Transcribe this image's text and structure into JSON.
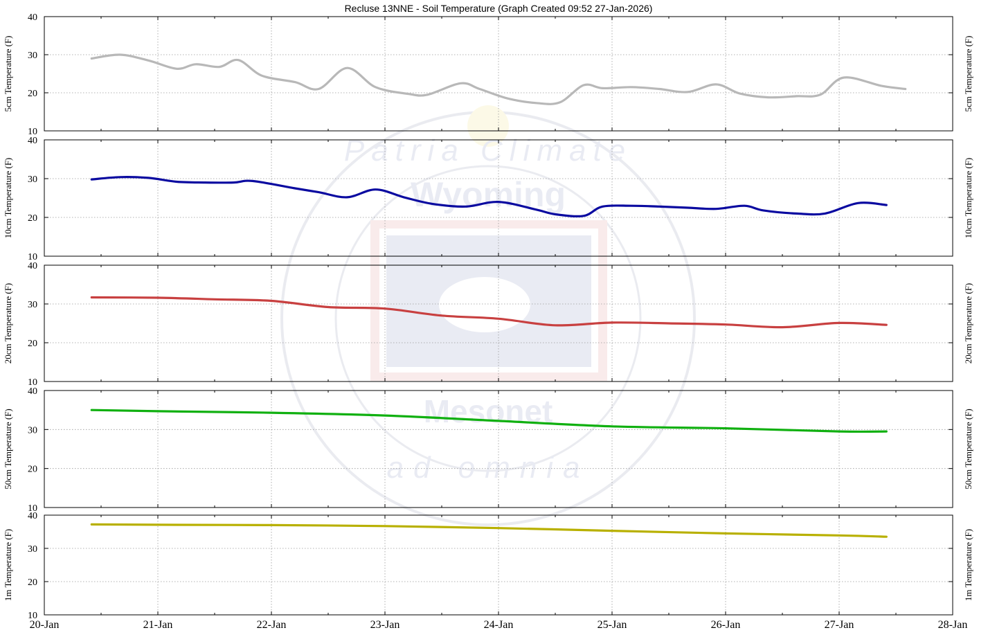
{
  "title": "Recluse 13NNE - Soil Temperature (Graph Created 09:52 27-Jan-2026)",
  "x_tick_labels": [
    "20-Jan",
    "21-Jan",
    "22-Jan",
    "23-Jan",
    "24-Jan",
    "25-Jan",
    "26-Jan",
    "27-Jan",
    "28-Jan"
  ],
  "watermark": {
    "ring_text_top": "Patria Climate",
    "name": "Wyoming",
    "name2": "Mesonet",
    "ring_text_bottom": "ad omnia"
  },
  "chart_data": [
    {
      "type": "line",
      "ylabel": "5cm Temperature (F)",
      "ylim": [
        10,
        40
      ],
      "yticks": [
        10,
        20,
        30,
        40
      ],
      "xlim": [
        "2026-01-20T00:00",
        "2026-01-28T00:00"
      ],
      "grid": true,
      "color": "#b8b8b8",
      "x": [
        "2026-01-20T10:00",
        "2026-01-20T16:00",
        "2026-01-20T22:00",
        "2026-01-21T04:00",
        "2026-01-21T08:00",
        "2026-01-21T13:00",
        "2026-01-21T17:00",
        "2026-01-21T22:00",
        "2026-01-22T05:00",
        "2026-01-22T10:00",
        "2026-01-22T16:00",
        "2026-01-22T22:00",
        "2026-01-23T05:00",
        "2026-01-23T09:00",
        "2026-01-23T16:00",
        "2026-01-23T20:00",
        "2026-01-24T02:00",
        "2026-01-24T08:00",
        "2026-01-24T13:00",
        "2026-01-24T18:00",
        "2026-01-24T22:00",
        "2026-01-25T04:00",
        "2026-01-25T10:00",
        "2026-01-25T16:00",
        "2026-01-25T22:00",
        "2026-01-26T03:00",
        "2026-01-26T09:00",
        "2026-01-26T15:00",
        "2026-01-26T20:00",
        "2026-01-27T01:00",
        "2026-01-27T09:00",
        "2026-01-27T14:00"
      ],
      "values": [
        29,
        30,
        28.5,
        26.3,
        27.5,
        26.8,
        28.6,
        24.5,
        22.8,
        21,
        26.5,
        21.5,
        19.7,
        19.5,
        22.5,
        21,
        18.5,
        17.3,
        17.5,
        22,
        21.2,
        21.5,
        21,
        20.2,
        22.2,
        19.8,
        18.8,
        19.1,
        19.5,
        24,
        21.8,
        21
      ]
    },
    {
      "type": "line",
      "ylabel": "10cm Temperature (F)",
      "ylim": [
        10,
        40
      ],
      "yticks": [
        10,
        20,
        30,
        40
      ],
      "xlim": [
        "2026-01-20T00:00",
        "2026-01-28T00:00"
      ],
      "grid": true,
      "color": "#0a0aa0",
      "x": [
        "2026-01-20T10:00",
        "2026-01-20T16:00",
        "2026-01-20T22:00",
        "2026-01-21T04:00",
        "2026-01-21T10:00",
        "2026-01-21T16:00",
        "2026-01-21T20:00",
        "2026-01-22T05:00",
        "2026-01-22T10:00",
        "2026-01-22T16:00",
        "2026-01-22T22:00",
        "2026-01-23T04:00",
        "2026-01-23T10:00",
        "2026-01-23T17:00",
        "2026-01-24T00:00",
        "2026-01-24T08:00",
        "2026-01-24T12:00",
        "2026-01-24T18:00",
        "2026-01-24T22:00",
        "2026-01-25T04:00",
        "2026-01-25T10:00",
        "2026-01-25T16:00",
        "2026-01-25T22:00",
        "2026-01-26T04:00",
        "2026-01-26T08:00",
        "2026-01-26T15:00",
        "2026-01-26T21:00",
        "2026-01-27T04:00",
        "2026-01-27T10:00"
      ],
      "values": [
        29.8,
        30.4,
        30.2,
        29.2,
        29,
        29,
        29.4,
        27.5,
        26.5,
        25.2,
        27.2,
        25.2,
        23.5,
        22.8,
        24,
        22,
        20.8,
        20.4,
        22.8,
        23,
        22.8,
        22.5,
        22.2,
        23,
        21.8,
        21,
        21,
        23.7,
        23.2
      ]
    },
    {
      "type": "line",
      "ylabel": "20cm Temperature (F)",
      "ylim": [
        10,
        40
      ],
      "yticks": [
        10,
        20,
        30,
        40
      ],
      "xlim": [
        "2026-01-20T00:00",
        "2026-01-28T00:00"
      ],
      "grid": true,
      "color": "#c84040",
      "x": [
        "2026-01-20T10:00",
        "2026-01-21T00:00",
        "2026-01-21T12:00",
        "2026-01-22T00:00",
        "2026-01-22T12:00",
        "2026-01-23T00:00",
        "2026-01-23T12:00",
        "2026-01-24T00:00",
        "2026-01-24T12:00",
        "2026-01-25T00:00",
        "2026-01-25T12:00",
        "2026-01-26T00:00",
        "2026-01-26T12:00",
        "2026-01-27T00:00",
        "2026-01-27T10:00"
      ],
      "values": [
        31.7,
        31.6,
        31.2,
        30.8,
        29.2,
        28.8,
        27,
        26.2,
        24.5,
        25.2,
        25,
        24.7,
        24,
        25.1,
        24.6
      ]
    },
    {
      "type": "line",
      "ylabel": "50cm Temperature (F)",
      "ylim": [
        10,
        40
      ],
      "yticks": [
        10,
        20,
        30,
        40
      ],
      "xlim": [
        "2026-01-20T00:00",
        "2026-01-28T00:00"
      ],
      "grid": true,
      "color": "#10b010",
      "x": [
        "2026-01-20T10:00",
        "2026-01-21T00:00",
        "2026-01-22T00:00",
        "2026-01-23T00:00",
        "2026-01-24T00:00",
        "2026-01-25T00:00",
        "2026-01-26T00:00",
        "2026-01-27T00:00",
        "2026-01-27T10:00"
      ],
      "values": [
        35,
        34.7,
        34.3,
        33.6,
        32.2,
        30.8,
        30.3,
        29.5,
        29.5
      ]
    },
    {
      "type": "line",
      "ylabel": "1m Temperature (F)",
      "ylim": [
        10,
        40
      ],
      "yticks": [
        10,
        20,
        30,
        40
      ],
      "xlim": [
        "2026-01-20T00:00",
        "2026-01-28T00:00"
      ],
      "grid": true,
      "color": "#b8b000",
      "x": [
        "2026-01-20T10:00",
        "2026-01-21T00:00",
        "2026-01-22T00:00",
        "2026-01-23T00:00",
        "2026-01-24T00:00",
        "2026-01-25T00:00",
        "2026-01-26T00:00",
        "2026-01-27T00:00",
        "2026-01-27T10:00"
      ],
      "values": [
        37.2,
        37.1,
        37,
        36.7,
        36.1,
        35.3,
        34.5,
        33.9,
        33.5
      ]
    }
  ]
}
